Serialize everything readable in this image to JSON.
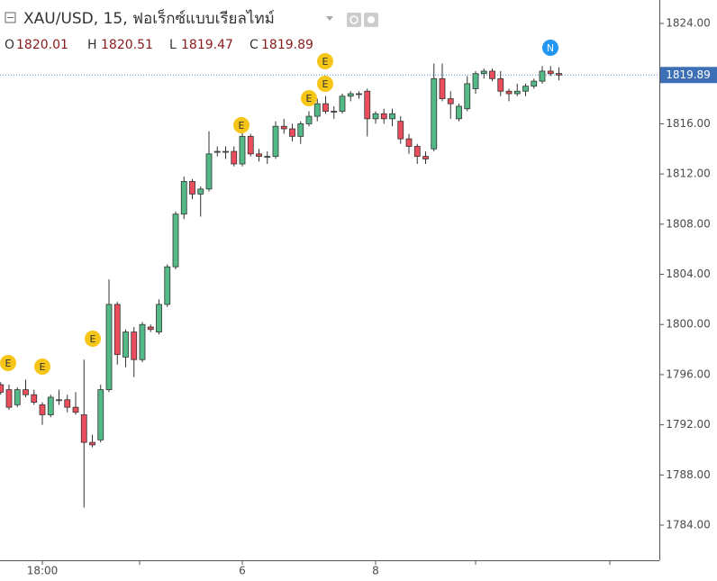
{
  "chart_data": {
    "type": "candlestick",
    "title": "XAU/USD, 15, ฟอเร็กซ์แบบเรียลไทม์",
    "ohlc_labels": [
      "O",
      "H",
      "L",
      "C"
    ],
    "categories": [
      null,
      null,
      null,
      null,
      null,
      "18:00",
      null,
      null,
      null,
      null,
      null,
      null,
      null,
      null,
      null,
      null,
      null,
      null,
      null,
      null,
      null,
      null,
      null,
      null,
      null,
      null,
      null,
      null,
      null,
      "6",
      null,
      null,
      null,
      null,
      null,
      null,
      null,
      null,
      null,
      null,
      null,
      null,
      null,
      null,
      null,
      "8",
      null,
      null,
      null,
      null,
      null,
      null,
      null,
      null,
      null,
      null,
      null,
      null,
      null,
      null,
      null,
      null,
      null,
      null,
      null,
      null,
      null,
      null
    ],
    "open": [
      1795.2,
      1794.8,
      1793.6,
      1794.8,
      1794.4,
      1793.6,
      1792.8,
      1794.0,
      1794.0,
      1793.4,
      1792.8,
      1790.6,
      1790.8,
      1794.8,
      1801.6,
      1797.4,
      1799.4,
      1797.2,
      1799.8,
      1799.4,
      1801.6,
      1804.6,
      1808.8,
      1811.4,
      1810.4,
      1810.8,
      1813.8,
      1813.8,
      1813.8,
      1812.8,
      1815.0,
      1813.6,
      1813.4,
      1813.4,
      1815.8,
      1815.6,
      1815.0,
      1816.0,
      1816.6,
      1817.6,
      1817.0,
      1817.0,
      1818.2,
      1818.4,
      1818.6,
      1816.4,
      1816.8,
      1816.4,
      1816.2,
      1814.8,
      1814.2,
      1813.4,
      1814.0,
      1819.6,
      1818.0,
      1816.4,
      1817.2,
      1818.8,
      1820.0,
      1820.2,
      1819.6,
      1818.6,
      1818.4,
      1818.6,
      1819.0,
      1819.4,
      1820.2,
      1820.01
    ],
    "high": [
      1795.4,
      1795.2,
      1795.0,
      1795.6,
      1794.8,
      1793.8,
      1794.4,
      1794.8,
      1794.4,
      1794.6,
      1797.2,
      1791.2,
      1795.2,
      1803.6,
      1801.8,
      1799.6,
      1799.8,
      1800.2,
      1800.0,
      1802.0,
      1804.8,
      1809.0,
      1811.8,
      1811.6,
      1811.0,
      1815.4,
      1814.2,
      1814.2,
      1814.2,
      1815.8,
      1815.2,
      1814.0,
      1813.8,
      1816.2,
      1816.4,
      1816.0,
      1816.2,
      1817.0,
      1818.0,
      1818.2,
      1817.4,
      1818.4,
      1818.6,
      1818.6,
      1818.8,
      1817.0,
      1817.2,
      1817.2,
      1816.6,
      1815.2,
      1814.4,
      1813.8,
      1820.8,
      1820.8,
      1818.6,
      1817.6,
      1819.8,
      1820.2,
      1820.4,
      1820.4,
      1820.2,
      1818.8,
      1819.2,
      1819.2,
      1819.6,
      1820.6,
      1820.6,
      1820.51
    ],
    "low": [
      1794.4,
      1793.2,
      1793.4,
      1794.2,
      1793.6,
      1792.0,
      1792.6,
      1793.6,
      1793.0,
      1792.8,
      1785.4,
      1790.2,
      1790.6,
      1794.6,
      1796.8,
      1796.6,
      1795.8,
      1797.0,
      1799.4,
      1799.2,
      1801.4,
      1804.4,
      1808.4,
      1810.0,
      1808.6,
      1810.6,
      1813.4,
      1813.2,
      1812.6,
      1812.6,
      1813.4,
      1813.0,
      1812.8,
      1813.2,
      1815.2,
      1814.6,
      1814.4,
      1815.8,
      1816.2,
      1816.8,
      1816.4,
      1816.8,
      1817.8,
      1818.0,
      1815.0,
      1816.0,
      1816.0,
      1815.8,
      1814.4,
      1813.6,
      1812.8,
      1812.8,
      1813.8,
      1817.8,
      1816.4,
      1816.2,
      1817.0,
      1818.4,
      1819.6,
      1819.4,
      1818.2,
      1817.8,
      1818.2,
      1818.2,
      1818.8,
      1819.2,
      1819.8,
      1819.47
    ],
    "close": [
      1794.6,
      1793.4,
      1794.8,
      1794.4,
      1793.8,
      1792.8,
      1794.2,
      1794.0,
      1793.4,
      1793.0,
      1790.6,
      1790.4,
      1794.8,
      1801.6,
      1797.6,
      1799.4,
      1797.2,
      1800.0,
      1799.6,
      1801.6,
      1804.6,
      1808.8,
      1811.4,
      1810.4,
      1810.8,
      1813.6,
      1813.8,
      1813.8,
      1812.8,
      1815.0,
      1813.6,
      1813.4,
      1813.4,
      1815.8,
      1815.6,
      1815.0,
      1816.0,
      1816.6,
      1817.6,
      1817.0,
      1817.0,
      1818.2,
      1818.4,
      1818.4,
      1816.4,
      1816.8,
      1816.4,
      1816.8,
      1814.8,
      1814.2,
      1813.4,
      1813.2,
      1819.6,
      1818.0,
      1817.6,
      1817.4,
      1819.2,
      1820.0,
      1820.2,
      1819.6,
      1818.6,
      1818.4,
      1818.6,
      1819.0,
      1819.4,
      1820.2,
      1820.0,
      1819.89
    ],
    "up_color": "#53b987",
    "down_color": "#eb4d5c",
    "ylim": [
      1781.2,
      1825.87
    ],
    "yticks": [
      {
        "value": 1784,
        "label": "1784.00"
      },
      {
        "value": 1788,
        "label": "1788.00"
      },
      {
        "value": 1792,
        "label": "1792.00"
      },
      {
        "value": 1796,
        "label": "1796.00"
      },
      {
        "value": 1800,
        "label": "1800.00"
      },
      {
        "value": 1804,
        "label": "1804.00"
      },
      {
        "value": 1808,
        "label": "1808.00"
      },
      {
        "value": 1812,
        "label": "1812.00"
      },
      {
        "value": 1816,
        "label": "1816.00"
      },
      {
        "value": 1820,
        "label": "1820.00"
      },
      {
        "value": 1824,
        "label": "1824.00"
      }
    ],
    "events": [
      "E",
      "E",
      "E",
      "E",
      "E",
      "E",
      "E",
      "N"
    ]
  }
}
